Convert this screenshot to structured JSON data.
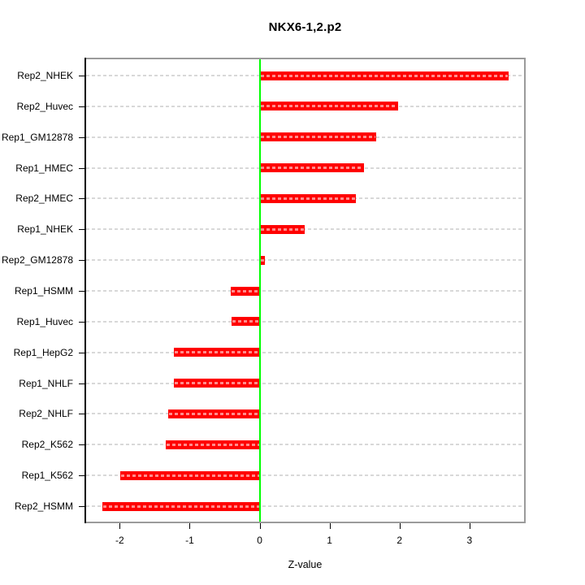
{
  "chart_data": {
    "type": "bar",
    "orientation": "horizontal",
    "title": "NKX6-1,2.p2",
    "xlabel": "Z-value",
    "ylabel": "",
    "categories": [
      "Rep2_NHEK",
      "Rep2_Huvec",
      "Rep1_GM12878",
      "Rep1_HMEC",
      "Rep2_HMEC",
      "Rep1_NHEK",
      "Rep2_GM12878",
      "Rep1_HSMM",
      "Rep1_Huvec",
      "Rep1_HepG2",
      "Rep1_NHLF",
      "Rep2_NHLF",
      "Rep2_K562",
      "Rep1_K562",
      "Rep2_HSMM"
    ],
    "values": [
      3.56,
      1.98,
      1.67,
      1.49,
      1.38,
      0.65,
      0.07,
      -0.41,
      -0.4,
      -1.22,
      -1.23,
      -1.31,
      -1.34,
      -1.99,
      -2.25
    ],
    "xticks": [
      -2,
      -1,
      0,
      1,
      2,
      3
    ],
    "xlim": [
      -2.48,
      3.78
    ],
    "grid": "dashed horizontal line per category, full width",
    "zero_line_at": 0,
    "legend": null,
    "colors": {
      "bar": "#ff0000",
      "zero_line": "#00ff00",
      "gridline": "#d8d8d8",
      "frame": "#9b9b9b",
      "axis": "#000000",
      "background": "#ffffff",
      "text": "#000000"
    }
  }
}
